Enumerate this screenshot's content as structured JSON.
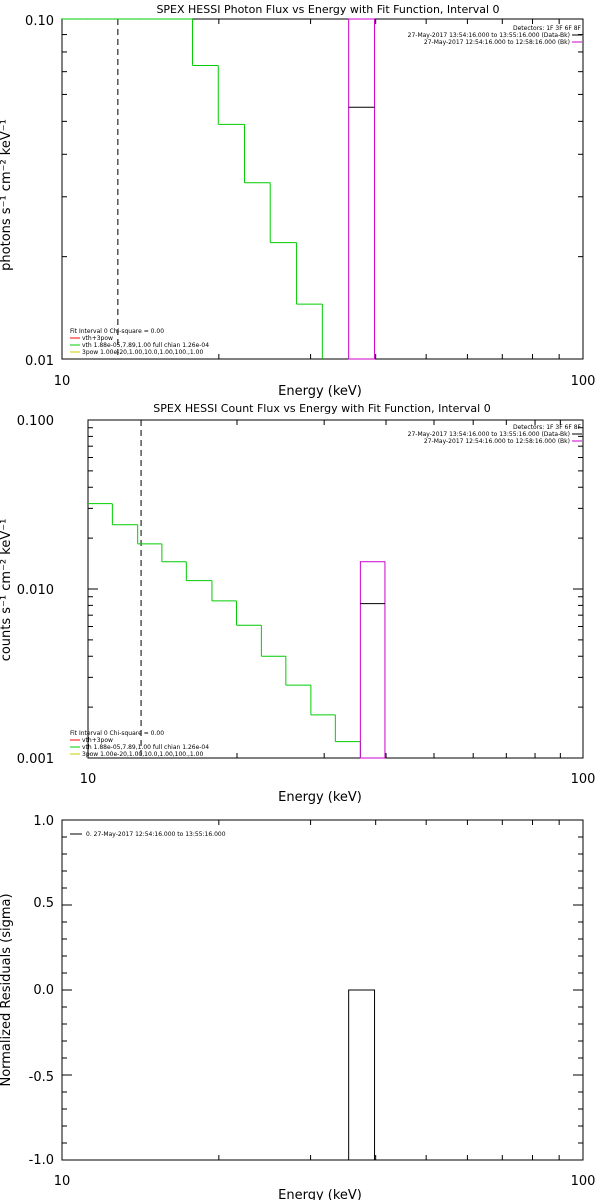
{
  "chart_data": [
    {
      "type": "line",
      "title": "SPEX HESSI Photon Flux vs Energy with Fit Function, Interval 0",
      "xlabel": "Energy (keV)",
      "ylabel": "photons s⁻¹ cm⁻² keV⁻¹",
      "xscale": "log",
      "yscale": "log",
      "xlim": [
        10,
        100
      ],
      "ylim": [
        0.01,
        0.1
      ],
      "xticklabels": [
        "10",
        "100"
      ],
      "yticklabels": [
        "0.01",
        "0.10"
      ],
      "detectors_label": "Detectors: 1F 3F 6F 8F",
      "legend_top": [
        {
          "text": "27-May-2017 13:54:16.000 to 13:55:16.000 (Data-Bk)",
          "color": "#000000"
        },
        {
          "text": "27-May-2017 12:54:16.000 to 12:58:16.000 (Bk)",
          "color": "#cc00cc"
        }
      ],
      "legend_bottom": [
        {
          "text": "Fit Interval  0   Chi-square = 0.00",
          "color": null
        },
        {
          "text": "vth+3pow",
          "color": "#ff0000"
        },
        {
          "text": "vth 1.88e-05,7.89,1.00  full chian 1.26e-04",
          "color": "#00cc00"
        },
        {
          "text": "3pow 1.00e-20,1.00,10.0,1.00,100.,1.00",
          "color": "#cccc00"
        }
      ],
      "vline_x": 12.8,
      "series": [
        {
          "color": "#00cc00",
          "style": "step",
          "edges": [
            10.0,
            11.2,
            12.6,
            14.1,
            15.8,
            17.8,
            19.95,
            22.4,
            25.1,
            28.2,
            31.6,
            35.5
          ],
          "values": [
            0.1,
            0.1,
            0.1,
            0.1,
            0.1,
            0.073,
            0.049,
            0.033,
            0.022,
            0.0145,
            0.0095
          ]
        }
      ],
      "bg_bin": {
        "x0": 35.5,
        "x1": 39.8,
        "value": 0.1,
        "color": "#cc00cc"
      },
      "data_bin": {
        "x0": 35.5,
        "x1": 39.8,
        "value": 0.055,
        "color": "#000000"
      }
    },
    {
      "type": "line",
      "title": "SPEX HESSI Count Flux vs Energy with Fit Function, Interval 0",
      "xlabel": "Energy (keV)",
      "ylabel": "counts s⁻¹ cm⁻² keV⁻¹",
      "xscale": "log",
      "yscale": "log",
      "xlim": [
        10,
        100
      ],
      "ylim": [
        0.001,
        0.1
      ],
      "xticklabels": [
        "10",
        "100"
      ],
      "yticklabels": [
        "0.001",
        "0.010",
        "0.100"
      ],
      "detectors_label": "Detectors: 1F 3F 6F 8F",
      "legend_top": [
        {
          "text": "27-May-2017 13:54:16.000 to 13:55:16.000 (Data-Bk)",
          "color": "#000000"
        },
        {
          "text": "27-May-2017 12:54:16.000 to 12:58:16.000 (Bk)",
          "color": "#cc00cc"
        }
      ],
      "legend_bottom": [
        {
          "text": "Fit Interval  0   Chi-square = 0.00",
          "color": null
        },
        {
          "text": "vth+3pow",
          "color": "#ff0000"
        },
        {
          "text": "vth 1.88e-05,7.89,1.00  full chian 1.26e-04",
          "color": "#00cc00"
        },
        {
          "text": "3pow 1.00e-20,1.00,10.0,1.00,100.,1.00",
          "color": "#cccc00"
        }
      ],
      "vline_x": 12.8,
      "series": [
        {
          "color": "#00cc00",
          "style": "step",
          "edges": [
            10.0,
            11.2,
            12.6,
            14.1,
            15.8,
            17.8,
            19.95,
            22.4,
            25.1,
            28.2,
            31.6,
            35.5
          ],
          "values": [
            0.032,
            0.024,
            0.0185,
            0.0145,
            0.0112,
            0.0085,
            0.0061,
            0.004,
            0.0027,
            0.0018,
            0.00125
          ]
        }
      ],
      "bg_bin": {
        "x0": 35.5,
        "x1": 39.8,
        "value": 0.0145,
        "color": "#cc00cc"
      },
      "data_bin": {
        "x0": 35.5,
        "x1": 39.8,
        "value": 0.0082,
        "color": "#000000"
      }
    },
    {
      "type": "line",
      "title": "",
      "xlabel": "Energy (keV)",
      "ylabel": "Normalized Residuals (sigma)",
      "xscale": "log",
      "yscale": "linear",
      "xlim": [
        10,
        100
      ],
      "ylim": [
        -1.0,
        1.0
      ],
      "xticklabels": [
        "10",
        "100"
      ],
      "yticks": [
        -1.0,
        -0.5,
        0.0,
        0.5,
        1.0
      ],
      "yticklabels": [
        "-1.0",
        "-0.5",
        "0.0",
        "0.5",
        "1.0"
      ],
      "legend_top": [
        {
          "text": "0. 27-May-2017 12:54:16.000 to 13:55:16.000",
          "color": "#000000"
        }
      ],
      "residual_bin": {
        "x0": 35.5,
        "x1": 39.8,
        "value": 0.0,
        "color": "#000000"
      }
    }
  ]
}
